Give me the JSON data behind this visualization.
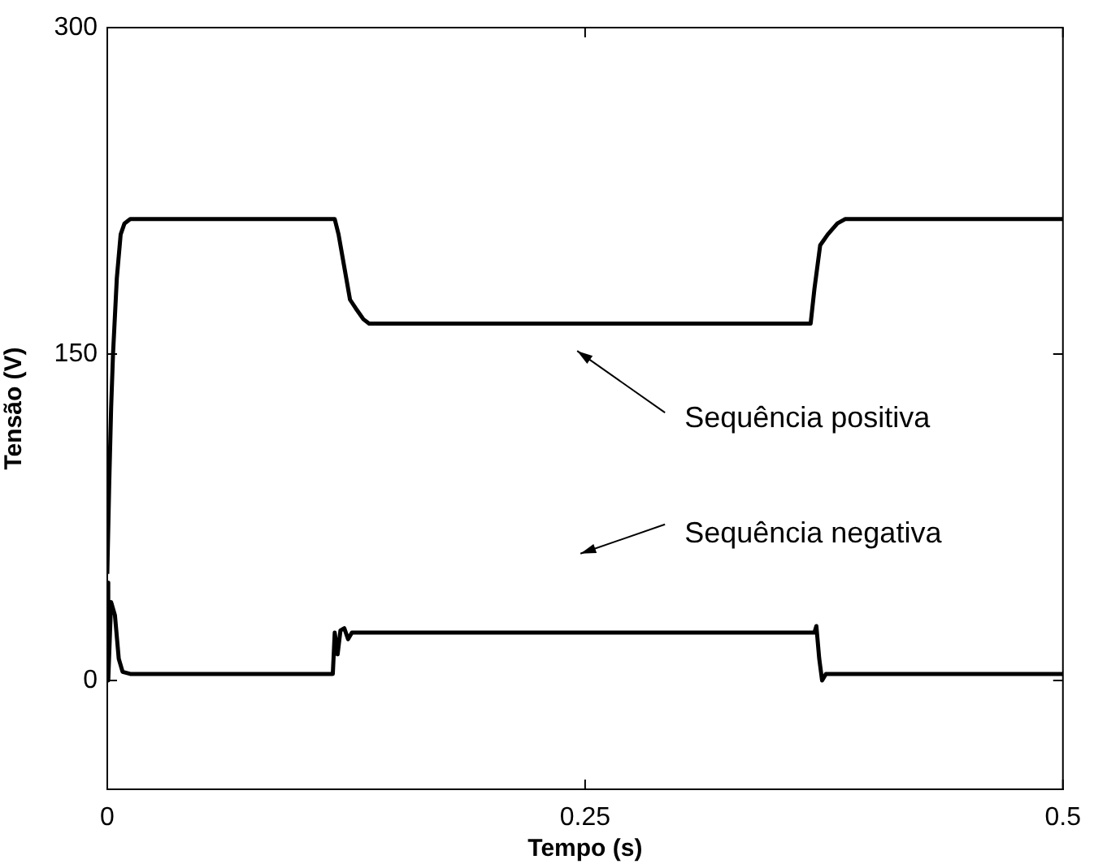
{
  "chart_data": {
    "type": "line",
    "xlabel": "Tempo (s)",
    "ylabel": "Tensão (V)",
    "xlim": [
      0,
      0.5
    ],
    "xticks": [
      0,
      0.25,
      0.5
    ],
    "ylim": [
      -50,
      300
    ],
    "yticks": [
      0,
      150,
      300
    ],
    "grid": false,
    "legend": false,
    "marker": "none",
    "line_style": "solid",
    "series": [
      {
        "color": "#000000",
        "x": [
          0,
          0.001,
          0.002,
          0.003,
          0.005,
          0.007,
          0.009,
          0.012,
          0.05,
          0.1,
          0.119,
          0.121,
          0.124,
          0.127,
          0.13,
          0.134,
          0.137,
          0.2,
          0.3,
          0.368,
          0.37,
          0.373,
          0.377,
          0.382,
          0.386,
          0.45,
          0.5
        ],
        "values": [
          49,
          90,
          125,
          150,
          185,
          205,
          210,
          212,
          212,
          212,
          212,
          205,
          190,
          175,
          171,
          166,
          164,
          164,
          164,
          164,
          180,
          200,
          205,
          210,
          212,
          212,
          212
        ]
      },
      {
        "color": "#000000",
        "x": [
          0,
          0.0005,
          0.002,
          0.004,
          0.006,
          0.008,
          0.012,
          0.1,
          0.118,
          0.119,
          0.1205,
          0.122,
          0.124,
          0.126,
          0.128,
          0.135,
          0.25,
          0.37,
          0.371,
          0.3725,
          0.374,
          0.376,
          0.45,
          0.5
        ],
        "values": [
          45,
          0,
          36,
          30,
          10,
          4,
          3,
          3,
          3,
          22,
          12,
          23,
          24,
          19,
          22,
          22,
          22,
          22,
          25,
          10,
          0,
          3,
          3,
          3
        ]
      }
    ],
    "annotations": [
      "Sequência positiva",
      "Sequência negativa"
    ]
  }
}
